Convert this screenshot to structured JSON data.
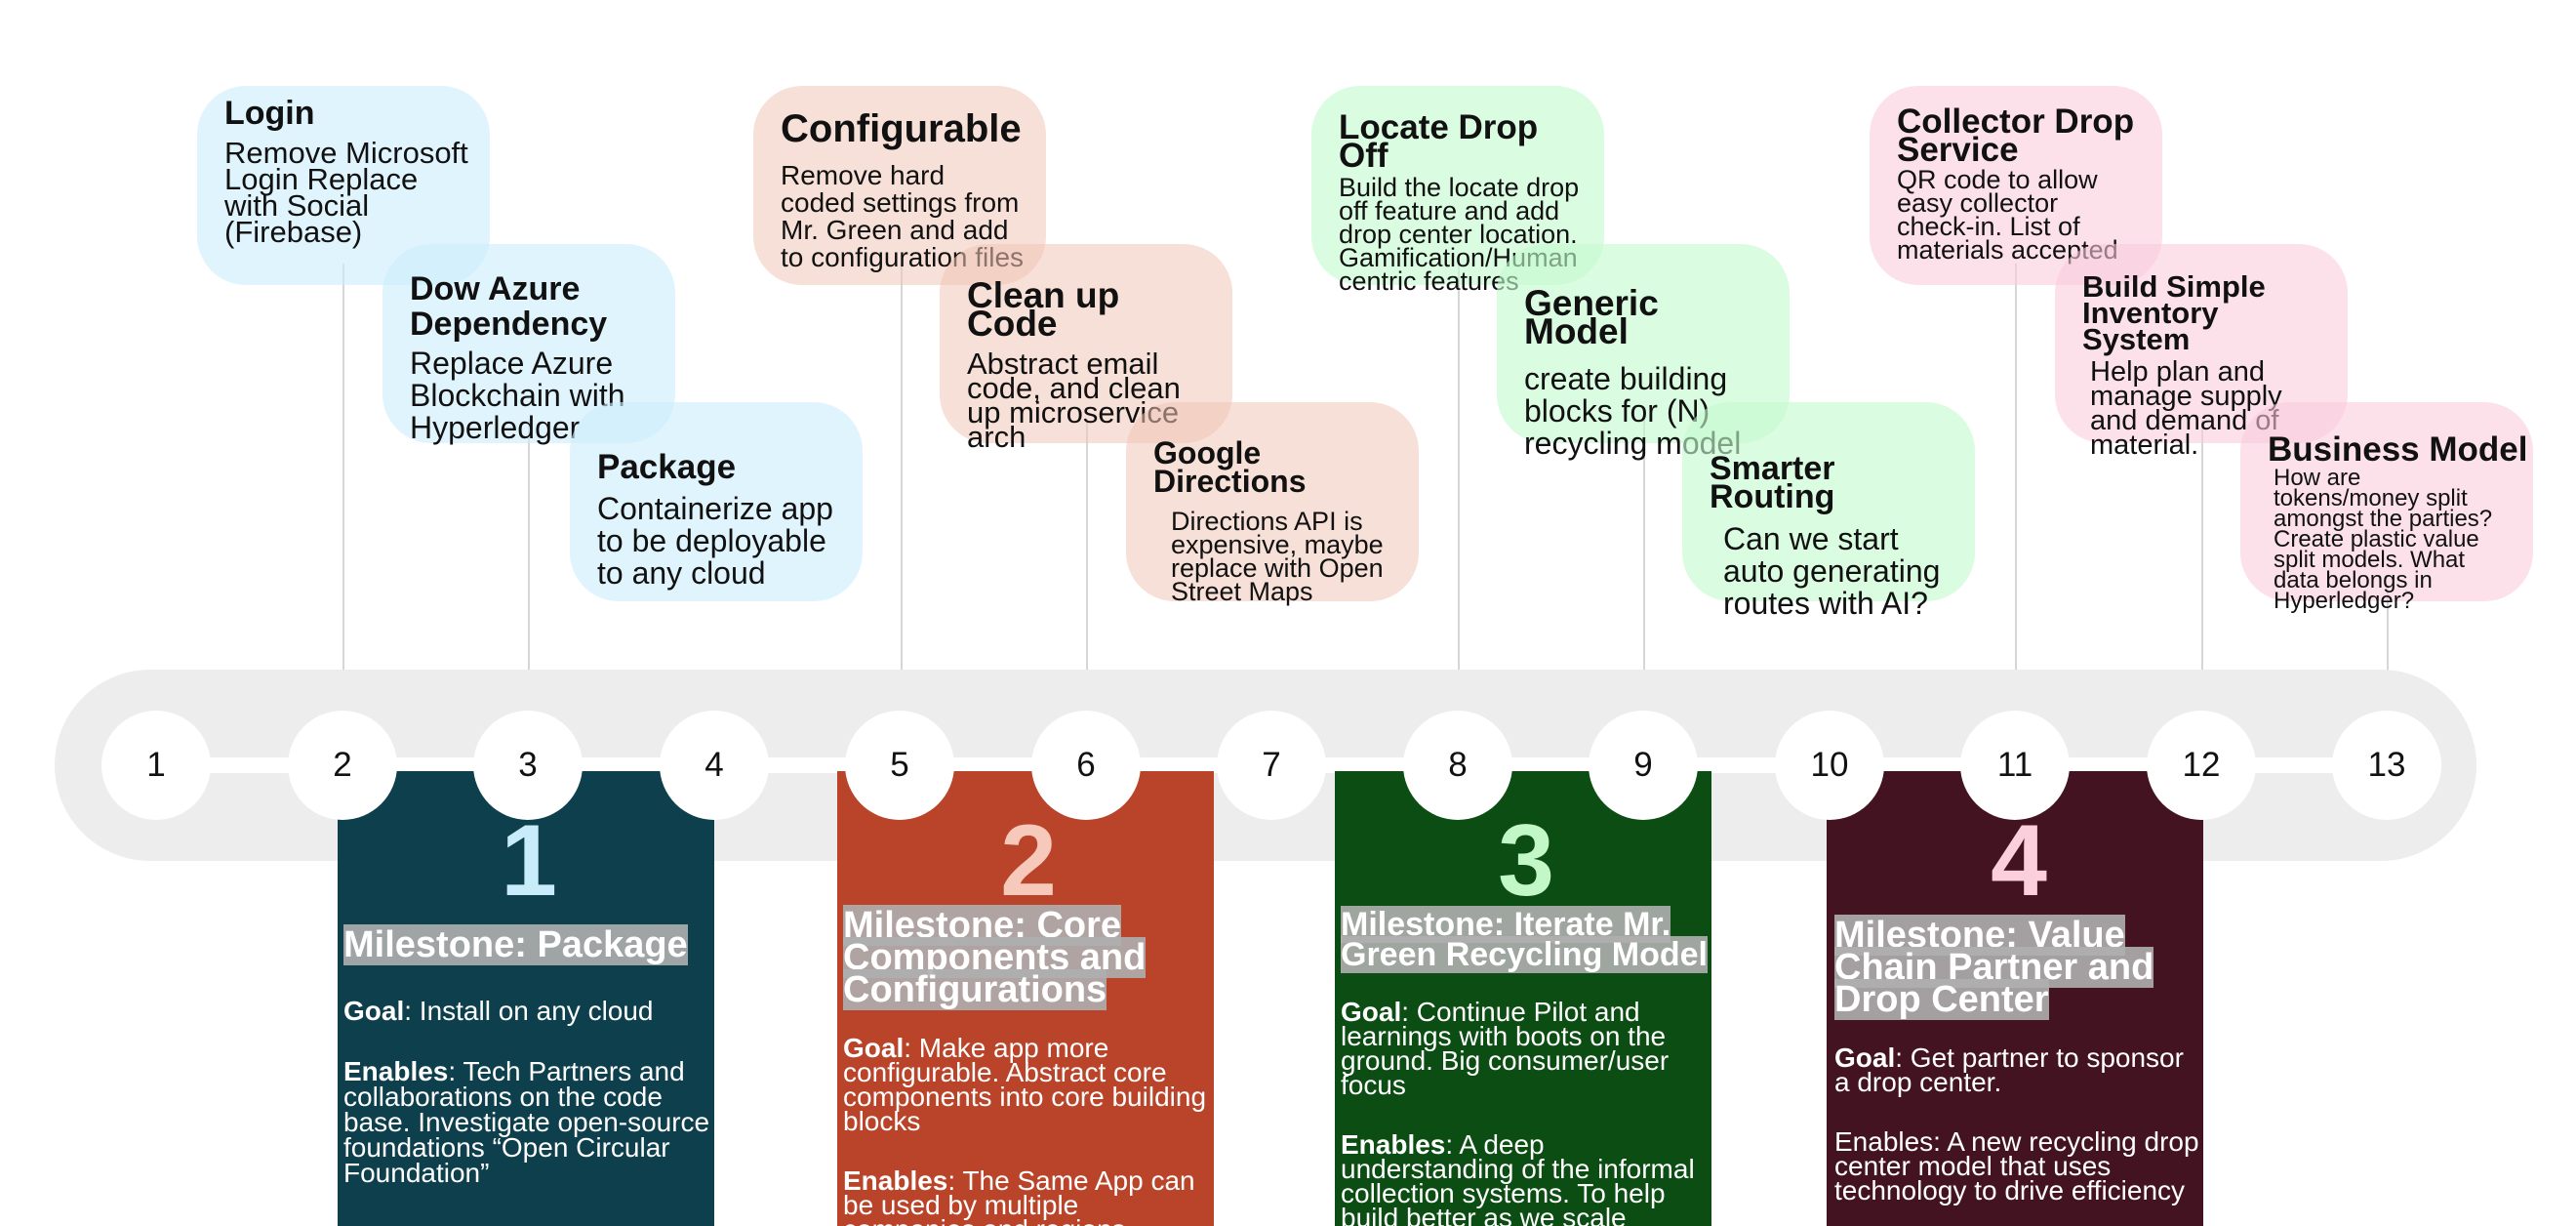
{
  "colors": {
    "track": "#ededed",
    "blue_card": "#cdeefc",
    "peach_card": "#f0c6b6",
    "green_card": "#c4face",
    "pink_card": "#facadc",
    "milestone_1": "#0d3f4d",
    "milestone_2": "#b9442a",
    "milestone_3": "#0b4d12",
    "milestone_4": "#441322",
    "num_1": "#c8ecf9",
    "num_2": "#f6c9bb",
    "num_3": "#c2f8c8",
    "num_4": "#fbd0dc"
  },
  "timeline": {
    "nodes": [
      "1",
      "2",
      "3",
      "4",
      "5",
      "6",
      "7",
      "8",
      "9",
      "10",
      "11",
      "12",
      "13"
    ]
  },
  "cards": {
    "login": {
      "title": "Login",
      "body": "Remove Microsoft Login Replace with Social (Firebase)"
    },
    "dow_azure": {
      "title": "Dow Azure Dependency",
      "body": "Replace Azure Blockchain with Hyperledger"
    },
    "package": {
      "title": "Package",
      "body": "Containerize app to be deployable to any cloud"
    },
    "configurable": {
      "title": "Configurable",
      "body": "Remove hard coded settings from Mr. Green and add to configuration files"
    },
    "clean_up": {
      "title": "Clean up Code",
      "body": "Abstract email code, and clean up microservice arch"
    },
    "google_directions": {
      "title": "Google Directions",
      "body": "Directions API is expensive, maybe replace with Open Street Maps"
    },
    "locate_drop_off": {
      "title": "Locate Drop Off",
      "body": "Build the locate drop off feature and add drop center location. Gamification/Human centric features"
    },
    "generic_model": {
      "title": "Generic Model",
      "body": "create building blocks for (N) recycling model"
    },
    "smarter_routing": {
      "title": "Smarter Routing",
      "body": "Can we start auto generating routes with AI?"
    },
    "collector_drop": {
      "title": "Collector Drop Service",
      "body": "QR code to allow easy collector check-in. List of materials accepted"
    },
    "inventory": {
      "title": "Build Simple Inventory System",
      "body": "Help plan and manage supply and demand of material."
    },
    "business_model": {
      "title": "Business Model",
      "body": "How are tokens/money split amongst the parties? Create plastic value split models. What data belongs in Hyperledger?"
    }
  },
  "milestones": [
    {
      "number": "1",
      "title": "Milestone: Package",
      "goal_label": "Goal",
      "goal": ": Install on any cloud",
      "enables_label": "Enables",
      "enables": ": Tech Partners and collaborations on the code base. Investigate open-source foundations “Open Circular Foundation”"
    },
    {
      "number": "2",
      "title": "Milestone: Core Components and Configurations",
      "goal_label": "Goal",
      "goal": ": Make app more configurable. Abstract core components into core building blocks",
      "enables_label": "Enables",
      "enables": ": The Same App can be used by multiple companies and regions"
    },
    {
      "number": "3",
      "title": "Milestone: Iterate Mr. Green Recycling Model",
      "goal_label": "Goal",
      "goal": ": Continue Pilot and learnings with boots on the ground. Big consumer/user focus",
      "enables_label": "Enables",
      "enables": ": A deep understanding of the informal collection systems. To help build better as we scale"
    },
    {
      "number": "4",
      "title": "Milestone: Value Chain Partner and Drop Center",
      "goal_label": "Goal",
      "goal": ": Get partner to sponsor a drop center.",
      "enables_text": "Enables: A new recycling drop center model that uses technology to drive efficiency"
    }
  ]
}
